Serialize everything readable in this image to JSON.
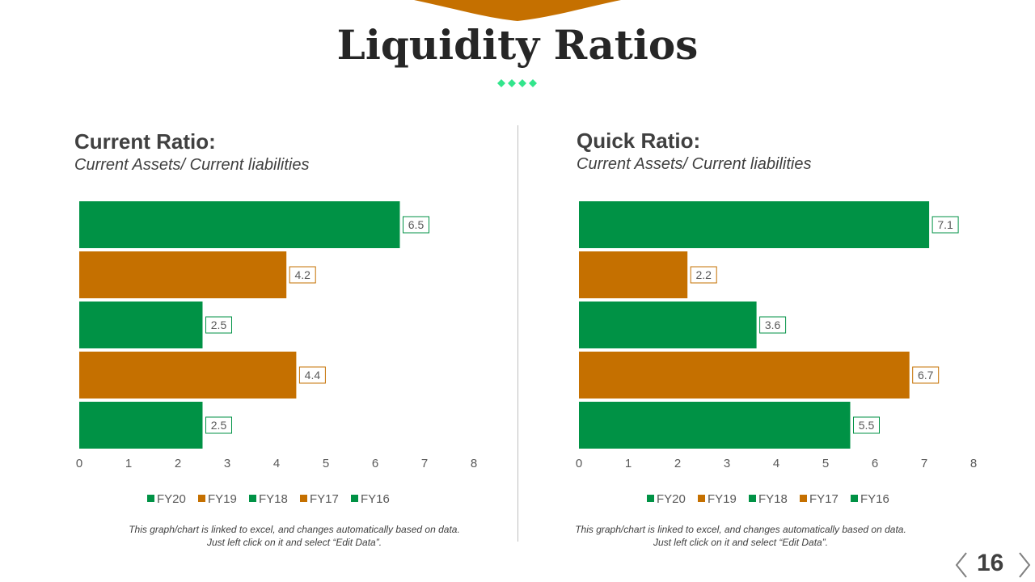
{
  "title": "Liquidity Ratios",
  "colors": {
    "green": "#009245",
    "orange": "#C57000",
    "accent_diamond": "#33E58C",
    "tab": "#C57000"
  },
  "charts": [
    {
      "heading": "Current Ratio:",
      "subheading": "Current Assets/ Current liabilities",
      "note_line1": "This graph/chart is linked to excel, and changes automatically based on data.",
      "note_line2": "Just left click on it and select “Edit Data”."
    },
    {
      "heading": "Quick Ratio:",
      "subheading": "Current Assets/ Current liabilities",
      "note_line1": "This graph/chart is linked to excel, and changes automatically based on data.",
      "note_line2": "Just left click on it and select “Edit Data”."
    }
  ],
  "chart_data": [
    {
      "type": "bar",
      "orientation": "horizontal",
      "title": "Current Ratio:",
      "subtitle": "Current Assets/ Current liabilities",
      "categories": [
        "FY20",
        "FY19",
        "FY18",
        "FY17",
        "FY16"
      ],
      "values": [
        6.5,
        4.2,
        2.5,
        4.4,
        2.5
      ],
      "value_labels": [
        "6.5",
        "4.2",
        "2.5",
        "4.4",
        "2.5"
      ],
      "bar_colors": [
        "#009245",
        "#C57000",
        "#009245",
        "#C57000",
        "#009245"
      ],
      "xlim": [
        0,
        8
      ],
      "x_ticks": [
        "0",
        "1",
        "2",
        "3",
        "4",
        "5",
        "6",
        "7",
        "8"
      ],
      "legend": [
        "FY20",
        "FY19",
        "FY18",
        "FY17",
        "FY16"
      ],
      "legend_position": "bottom",
      "grid": false
    },
    {
      "type": "bar",
      "orientation": "horizontal",
      "title": "Quick Ratio:",
      "subtitle": "Current Assets/ Current liabilities",
      "categories": [
        "FY20",
        "FY19",
        "FY18",
        "FY17",
        "FY16"
      ],
      "values": [
        7.1,
        2.2,
        3.6,
        6.7,
        5.5
      ],
      "value_labels": [
        "7.1",
        "2.2",
        "3.6",
        "6.7",
        "5.5"
      ],
      "bar_colors": [
        "#009245",
        "#C57000",
        "#009245",
        "#C57000",
        "#009245"
      ],
      "xlim": [
        0,
        8
      ],
      "x_ticks": [
        "0",
        "1",
        "2",
        "3",
        "4",
        "5",
        "6",
        "7",
        "8"
      ],
      "legend": [
        "FY20",
        "FY19",
        "FY18",
        "FY17",
        "FY16"
      ],
      "legend_position": "bottom",
      "grid": false
    }
  ],
  "page_number": "16",
  "nav": {
    "prev_icon": "chevron-left-icon",
    "next_icon": "chevron-right-icon"
  }
}
